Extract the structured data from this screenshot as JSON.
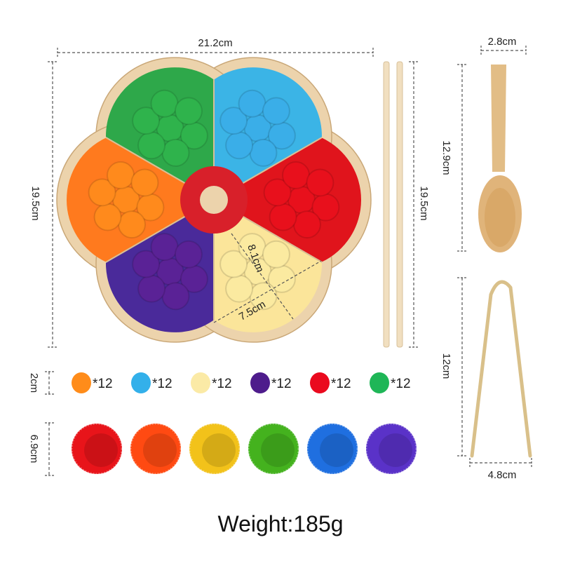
{
  "board": {
    "sectors": [
      {
        "name": "red",
        "color": "#e0141c",
        "ball": "#e8101c"
      },
      {
        "name": "blue",
        "color": "#3bb4e6",
        "ball": "#3aaee8"
      },
      {
        "name": "green",
        "color": "#2ea84a",
        "ball": "#2fb34c"
      },
      {
        "name": "orange",
        "color": "#ff7a1e",
        "ball": "#ff8a1c"
      },
      {
        "name": "purple",
        "color": "#4a2a9a",
        "ball": "#5a2296"
      },
      {
        "name": "yellow",
        "color": "#fbe59a",
        "ball": "#fbeaa0"
      }
    ],
    "wood_color": "#ecd3ac",
    "center_ring_color": "#d8202a"
  },
  "dimensions": {
    "board_width": "21.2cm",
    "board_height": "19.5cm",
    "chopstick_length": "19.5cm",
    "sector_radius": "8.1cm",
    "sector_chord": "7.5cm",
    "spoon_width": "2.8cm",
    "spoon_length": "12.9cm",
    "tongs_length": "12cm",
    "tongs_width": "4.8cm",
    "ball_size": "2cm",
    "cup_size": "6.9cm"
  },
  "balls": [
    {
      "color": "#ff8c1a",
      "count": "*12"
    },
    {
      "color": "#33b0ea",
      "count": "*12"
    },
    {
      "color": "#fbeaa6",
      "count": "*12"
    },
    {
      "color": "#4e1c8c",
      "count": "*12"
    },
    {
      "color": "#ea0a1e",
      "count": "*12"
    },
    {
      "color": "#1fb657",
      "count": "*12"
    }
  ],
  "cups": [
    "#e8141a",
    "#ff4a12",
    "#f2c21a",
    "#44b21e",
    "#1f6fe0",
    "#5a32c8"
  ],
  "weight": "Weight:185g"
}
